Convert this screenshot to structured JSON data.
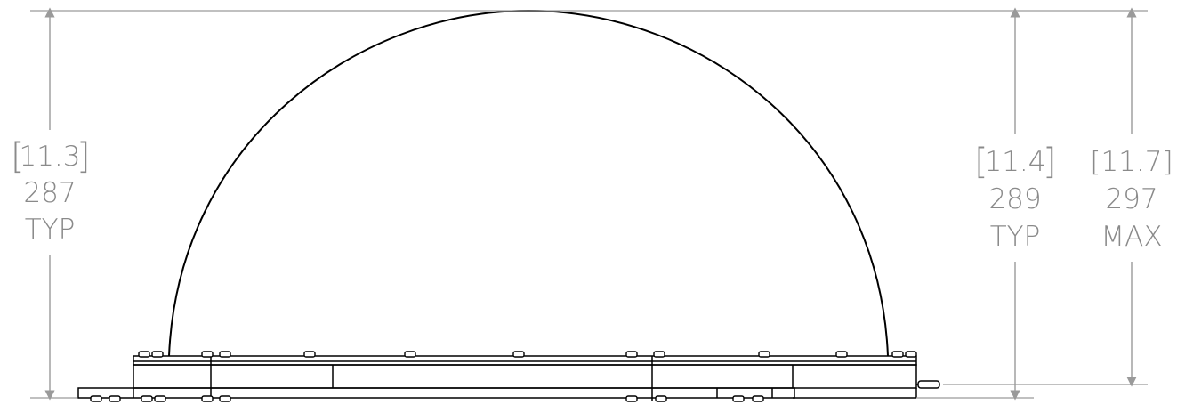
{
  "dimensions": {
    "left": {
      "inches": "11.3",
      "mm": "287",
      "note": "TYP"
    },
    "right_inner": {
      "inches": "11.4",
      "mm": "289",
      "note": "TYP"
    },
    "right_outer": {
      "inches": "11.7",
      "mm": "297",
      "note": "MAX"
    }
  },
  "colors": {
    "outline": "#000000",
    "dimension": "#8a8a8a"
  }
}
